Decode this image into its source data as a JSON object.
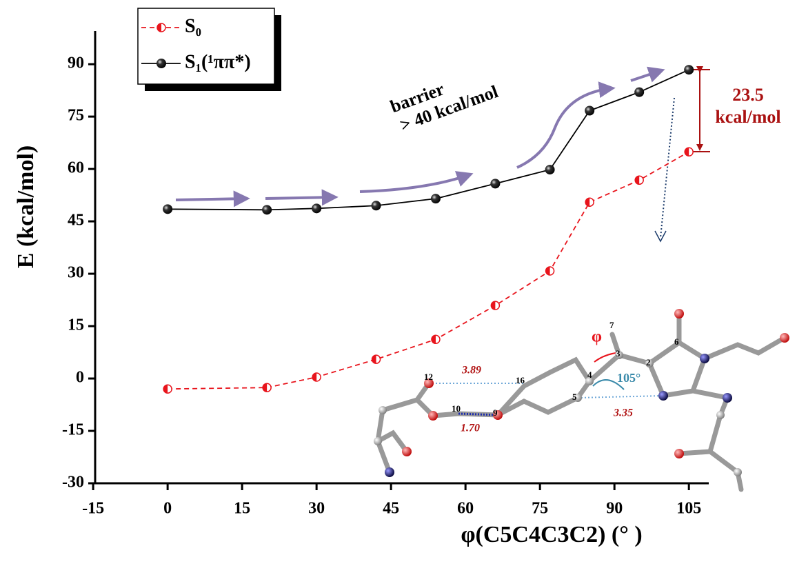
{
  "chart_data": {
    "type": "line",
    "xlabel": "φ(C5C4C3C2) (° )",
    "ylabel": "E (kcal/mol)",
    "xlim": [
      -14.6,
      109
    ],
    "xticks": [
      -15,
      0,
      15,
      30,
      45,
      60,
      75,
      90,
      105
    ],
    "ylim": [
      -30,
      99.5
    ],
    "yticks": [
      -30,
      -15,
      0,
      15,
      30,
      45,
      60,
      75,
      90
    ],
    "legend": "upper left",
    "series": [
      {
        "name": "S₀",
        "color": "#e8141c",
        "x": [
          0,
          20,
          30,
          42,
          54,
          66,
          77,
          85,
          95,
          105
        ],
        "values": [
          -3,
          -2.6,
          0.4,
          5.5,
          11.2,
          20.9,
          30.8,
          50.5,
          56.8,
          64.9
        ]
      },
      {
        "name": "S₁(¹ππ*)",
        "color": "#000000",
        "x": [
          0,
          20,
          30,
          42,
          54,
          66,
          77,
          85,
          95,
          105
        ],
        "values": [
          48.5,
          48.3,
          48.7,
          49.5,
          51.5,
          55.8,
          59.8,
          76.7,
          82,
          88.4
        ]
      }
    ],
    "annotations": [
      "barrier",
      "> 40 kcal/mol",
      "23.5",
      "kcal/mol",
      "φ",
      "105°",
      "3.89",
      "1.70",
      "3.35",
      "7",
      "3",
      "2",
      "6",
      "4",
      "5",
      "12",
      "16",
      "10",
      "9"
    ]
  }
}
